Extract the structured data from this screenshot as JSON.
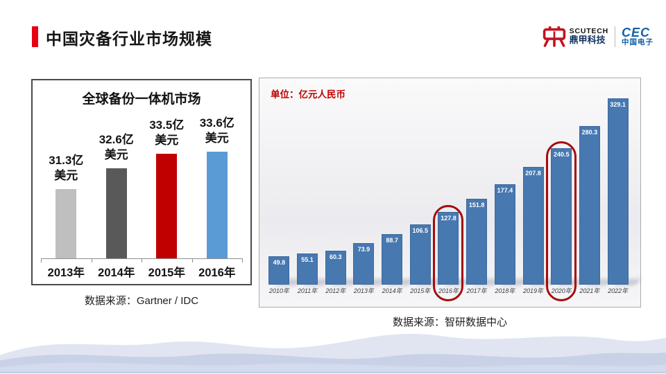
{
  "slide": {
    "title": "中国灾备行业市场规模"
  },
  "logos": {
    "scutech": {
      "name": "SCUTECH",
      "cn": "鼎甲科技"
    },
    "cec": {
      "name": "CEC",
      "cn": "中国电子"
    }
  },
  "colors": {
    "accent_red": "#e60012",
    "highlight_ring": "#a50b0b",
    "right_bar_blue": "#4778b0",
    "unit_label_red": "#c00000"
  },
  "chart_data": [
    {
      "id": "global-backup-appliance-market",
      "type": "bar",
      "title": "全球备份一体机市场",
      "categories": [
        "2013年",
        "2014年",
        "2015年",
        "2016年"
      ],
      "values": [
        31.3,
        32.6,
        33.5,
        33.6
      ],
      "value_labels": [
        [
          "31.3亿",
          "美元"
        ],
        [
          "32.6亿",
          "美元"
        ],
        [
          "33.5亿",
          "美元"
        ],
        [
          "33.6亿",
          "美元"
        ]
      ],
      "bar_colors": [
        "#bfbfbf",
        "#595959",
        "#c00000",
        "#5b9bd5"
      ],
      "ylim": [
        27,
        34
      ],
      "grid": false,
      "legend": false,
      "source": "数据来源：Gartner / IDC"
    },
    {
      "id": "china-disaster-recovery-market",
      "type": "bar",
      "unit_label": "单位：亿元人民币",
      "categories": [
        "2010年",
        "2011年",
        "2012年",
        "2013年",
        "2014年",
        "2015年",
        "2016年",
        "2017年",
        "2018年",
        "2019年",
        "2020年",
        "2021年",
        "2022年"
      ],
      "values": [
        49.8,
        55.1,
        60.3,
        73.9,
        88.7,
        106.5,
        127.8,
        151.8,
        177.4,
        207.8,
        240.5,
        280.3,
        329.1
      ],
      "bar_color": "#4778b0",
      "ylim": [
        0,
        340
      ],
      "grid": false,
      "legend": false,
      "highlighted_categories": [
        "2016年",
        "2020年"
      ],
      "source": "数据来源：智研数据中心"
    }
  ]
}
